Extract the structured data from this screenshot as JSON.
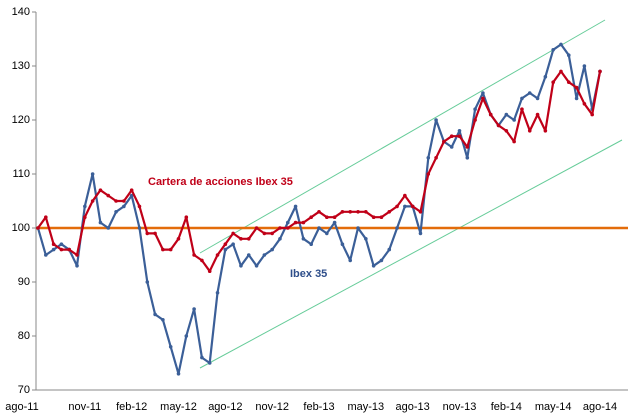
{
  "chart_data": {
    "type": "line",
    "categories": [
      "ago-11",
      null,
      null,
      null,
      null,
      null,
      "nov-11",
      null,
      null,
      null,
      null,
      null,
      "feb-12",
      null,
      null,
      null,
      null,
      null,
      "may-12",
      null,
      null,
      null,
      null,
      null,
      "ago-12",
      null,
      null,
      null,
      null,
      null,
      "nov-12",
      null,
      null,
      null,
      null,
      null,
      "feb-13",
      null,
      null,
      null,
      null,
      null,
      "may-13",
      null,
      null,
      null,
      null,
      null,
      "ago-13",
      null,
      null,
      null,
      null,
      null,
      "nov-13",
      null,
      null,
      null,
      null,
      null,
      "feb-14",
      null,
      null,
      null,
      null,
      null,
      "may-14",
      null,
      null,
      null,
      null,
      null,
      "ago-14"
    ],
    "series": [
      {
        "name": "Ibex 35",
        "color": "#3b5f98",
        "values": [
          100,
          95,
          96,
          97,
          96,
          93,
          104,
          110,
          101,
          100,
          103,
          104,
          106,
          100,
          90,
          84,
          83,
          78,
          73,
          80,
          85,
          76,
          75,
          88,
          96,
          97,
          93,
          95,
          93,
          95,
          96,
          98,
          101,
          104,
          98,
          97,
          100,
          99,
          101,
          97,
          94,
          100,
          98,
          93,
          94,
          96,
          100,
          104,
          104,
          99,
          113,
          120,
          116,
          115,
          118,
          113,
          122,
          125,
          121,
          119,
          121,
          120,
          124,
          125,
          124,
          128,
          133,
          134,
          132,
          124,
          130,
          122,
          129
        ]
      },
      {
        "name": "Cartera de acciones Ibex 35",
        "color": "#c00018",
        "values": [
          100,
          102,
          97,
          96,
          96,
          95,
          102,
          105,
          107,
          106,
          105,
          105,
          107,
          104,
          99,
          99,
          96,
          96,
          98,
          102,
          95,
          94,
          92,
          95,
          97,
          99,
          98,
          98,
          100,
          99,
          99,
          100,
          100,
          101,
          101,
          102,
          103,
          102,
          102,
          103,
          103,
          103,
          103,
          102,
          102,
          103,
          104,
          106,
          104,
          103,
          110,
          113,
          116,
          117,
          117,
          115,
          120,
          124,
          121,
          119,
          118,
          116,
          122,
          118,
          121,
          118,
          127,
          129,
          127,
          126,
          123,
          121,
          129
        ]
      }
    ],
    "hline": 100,
    "hline_color": "#e36c0a",
    "ylim": [
      70,
      140
    ],
    "yticks": [
      70,
      80,
      90,
      100,
      110,
      120,
      130,
      140
    ],
    "grid": false
  }
}
